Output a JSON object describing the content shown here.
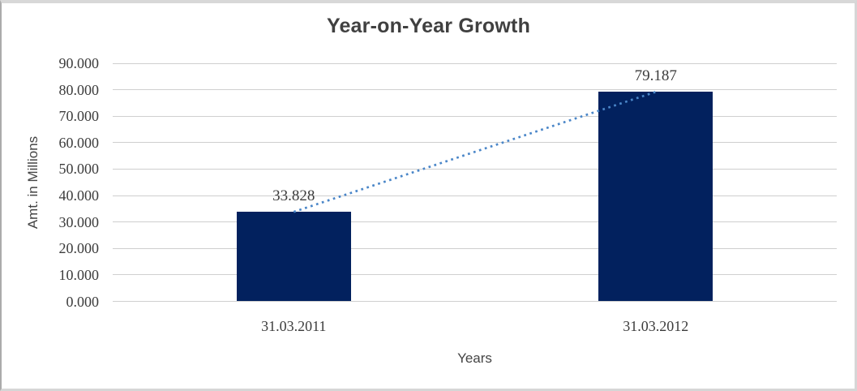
{
  "chart_data": {
    "type": "bar",
    "title": "Year-on-Year Growth",
    "xlabel": "Years",
    "ylabel": "Amt. in Millions",
    "categories": [
      "31.03.2011",
      "31.03.2012"
    ],
    "values": [
      33.828,
      79.187
    ],
    "data_labels": [
      "33.828",
      "79.187"
    ],
    "y_ticks": [
      "0.000",
      "10.000",
      "20.000",
      "30.000",
      "40.000",
      "50.000",
      "60.000",
      "70.000",
      "80.000",
      "90.000"
    ],
    "ylim": [
      0,
      90
    ],
    "grid": true,
    "legend": "none",
    "trendline": {
      "style": "dotted",
      "from_point": [
        0,
        33.828
      ],
      "to_point": [
        1,
        79.187
      ]
    },
    "colors": {
      "bar": "#02215e",
      "trendline": "#4a86c8",
      "gridline": "#cfcfcf",
      "tick_text": "#3c3c3c",
      "title_text": "#404040",
      "frame_border": "#d6d6d6"
    }
  }
}
